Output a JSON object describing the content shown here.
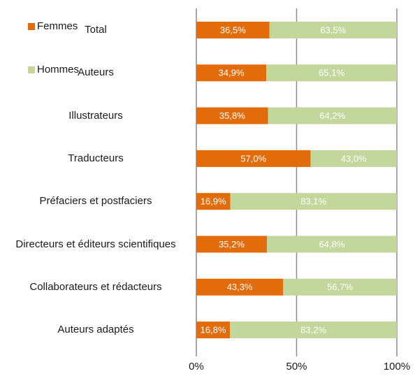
{
  "chart_data": {
    "type": "stacked_bar_horizontal",
    "categories": [
      "Total",
      "Auteurs",
      "Illustrateurs",
      "Traducteurs",
      "Préfaciers et postfaciers",
      "Directeurs et éditeurs scientifiques",
      "Collaborateurs et rédacteurs",
      "Auteurs adaptés"
    ],
    "series": [
      {
        "name": "Femmes",
        "color": "#e36c0a",
        "values": [
          36.5,
          34.9,
          35.8,
          57.0,
          16.9,
          35.2,
          43.3,
          16.8
        ],
        "value_labels": [
          "36,5%",
          "34,9%",
          "35,8%",
          "57,0%",
          "16,9%",
          "35,2%",
          "43,3%",
          "16,8%"
        ]
      },
      {
        "name": "Hommes",
        "color": "#c3d69b",
        "values": [
          63.5,
          65.1,
          64.2,
          43.0,
          83.1,
          64.8,
          56.7,
          83.2
        ],
        "value_labels": [
          "63,5%",
          "65,1%",
          "64,2%",
          "43,0%",
          "83,1%",
          "64,8%",
          "56,7%",
          "83,2%"
        ]
      }
    ],
    "xlim": [
      0,
      100
    ],
    "xticks": [
      {
        "value": 0,
        "label": "0%"
      },
      {
        "value": 50,
        "label": "50%"
      },
      {
        "value": 100,
        "label": "100%"
      }
    ],
    "grid": true,
    "legend": "top-left"
  }
}
